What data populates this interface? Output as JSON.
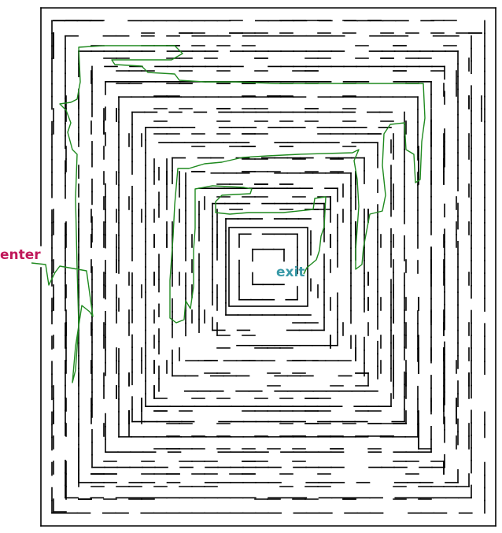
{
  "puzzle": {
    "type": "maze",
    "shape": "rectangular, concentric rings around a square goal chamber",
    "solution_drawn": true
  },
  "labels": {
    "enter": "enter",
    "exit": "exit"
  },
  "colors": {
    "background": "#ffffff",
    "walls": "#000000",
    "solution_path": "#1f8a1f",
    "enter_label": "#c0185a",
    "exit_label": "#3a9aa8"
  }
}
